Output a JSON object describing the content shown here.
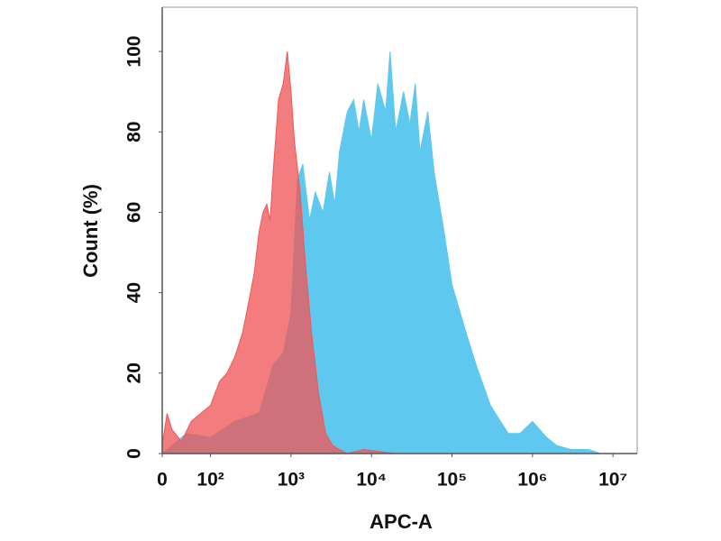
{
  "chart_data": {
    "type": "area",
    "xlabel": "APC-A",
    "ylabel": "Count  (%)",
    "xscale": "symlog",
    "linthresh": 100,
    "xlim": [
      0,
      20000000
    ],
    "ylim": [
      0,
      111
    ],
    "xticks": [
      0,
      {
        "value": 100,
        "label": "10²"
      },
      {
        "value": 1000,
        "label": "10³"
      },
      {
        "value": 10000,
        "label": "10⁴"
      },
      {
        "value": 100000,
        "label": "10⁵"
      },
      {
        "value": 1000000,
        "label": "10⁶"
      },
      {
        "value": 10000000,
        "label": "10⁷"
      }
    ],
    "yticks": [
      0,
      20,
      40,
      60,
      80,
      100
    ],
    "series": [
      {
        "color": "#5ec8ee",
        "opacity": 1,
        "x": [
          0,
          20,
          50,
          100,
          200,
          400,
          600,
          800,
          1000,
          1200,
          1400,
          1700,
          2000,
          2500,
          3000,
          3500,
          4000,
          5000,
          6000,
          7000,
          8000,
          10000,
          12000,
          15000,
          17000,
          20000,
          25000,
          30000,
          35000,
          40000,
          50000,
          60000,
          80000,
          100000,
          150000,
          200000,
          300000,
          400000,
          500000,
          700000,
          1000000,
          1500000,
          2000000,
          3000000,
          5000000,
          7000000
        ],
        "values": [
          0,
          2,
          5,
          4,
          8,
          10,
          22,
          25,
          35,
          68,
          72,
          58,
          65,
          60,
          70,
          62,
          75,
          85,
          88,
          80,
          88,
          78,
          92,
          85,
          100,
          80,
          90,
          82,
          92,
          75,
          85,
          70,
          55,
          42,
          30,
          22,
          12,
          8,
          5,
          5,
          8,
          4,
          2,
          1,
          1,
          0
        ]
      },
      {
        "color": "#f0585a",
        "opacity": 0.78,
        "x": [
          0,
          10,
          20,
          40,
          60,
          80,
          100,
          130,
          160,
          200,
          250,
          300,
          350,
          400,
          450,
          500,
          550,
          600,
          700,
          800,
          900,
          1000,
          1100,
          1300,
          1500,
          1800,
          2200,
          2700,
          3300,
          4000,
          5000,
          8000,
          20000
        ],
        "values": [
          2,
          10,
          6,
          3,
          8,
          10,
          12,
          18,
          20,
          24,
          30,
          38,
          45,
          55,
          60,
          62,
          58,
          70,
          88,
          92,
          100,
          90,
          78,
          65,
          48,
          30,
          15,
          5,
          2,
          1,
          0,
          1,
          0
        ]
      }
    ]
  }
}
